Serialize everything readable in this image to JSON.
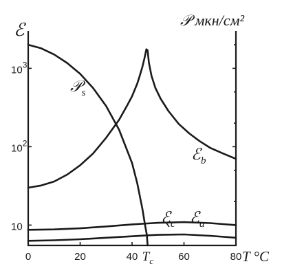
{
  "chart_data": {
    "type": "line",
    "axes": {
      "left_label": "ℰ",
      "right_label": "𝒫 мкн/см²",
      "x_label": "T °C",
      "x_range": [
        0,
        80
      ],
      "y_scale": "log",
      "y_range": [
        5.5,
        3000
      ],
      "x_ticks": [
        "0",
        "20",
        "40",
        "60",
        "80"
      ],
      "special_tick": {
        "x": 46,
        "label": "T",
        "sub": "c"
      },
      "y_ticks": [
        {
          "value": 10,
          "base": "10",
          "exp": ""
        },
        {
          "value": 100,
          "base": "10",
          "exp": "2"
        },
        {
          "value": 1000,
          "base": "10",
          "exp": "3"
        }
      ],
      "grid": false
    },
    "series": [
      {
        "name": "𝒫s",
        "label_main": "𝒫",
        "label_sub": "s",
        "x": [
          0,
          5,
          10,
          15,
          20,
          25,
          30,
          35,
          40,
          42,
          44,
          45,
          45.7,
          46
        ],
        "y": [
          2000,
          1800,
          1500,
          1170,
          850,
          560,
          330,
          165,
          62,
          34,
          16,
          10,
          7.5,
          5.5
        ]
      },
      {
        "name": "ℰb",
        "label_main": "ℰ",
        "label_sub": "b",
        "x": [
          0,
          5,
          10,
          15,
          20,
          25,
          30,
          35,
          38,
          40,
          42,
          43,
          44,
          44.8,
          45.5,
          46,
          46.5,
          47.5,
          49,
          51,
          54,
          58,
          62,
          66,
          70,
          75,
          80
        ],
        "y": [
          30,
          32,
          36,
          44,
          58,
          82,
          130,
          220,
          330,
          440,
          640,
          810,
          1050,
          1350,
          1750,
          1700,
          1180,
          800,
          560,
          410,
          285,
          195,
          148,
          118,
          97,
          82,
          70
        ]
      },
      {
        "name": "ℰc",
        "label_main": "ℰ",
        "label_sub": "c",
        "x": [
          0,
          10,
          20,
          30,
          40,
          46,
          50,
          60,
          70,
          80
        ],
        "y": [
          8.7,
          8.8,
          9.1,
          9.6,
          10.2,
          10.5,
          10.7,
          10.9,
          10.6,
          10.0
        ]
      },
      {
        "name": "ℰa",
        "label_main": "ℰ",
        "label_sub": "a",
        "x": [
          0,
          10,
          20,
          30,
          40,
          46,
          50,
          60,
          70,
          80
        ],
        "y": [
          6.3,
          6.4,
          6.6,
          6.9,
          7.2,
          7.4,
          7.5,
          7.6,
          7.3,
          6.9
        ]
      }
    ]
  }
}
